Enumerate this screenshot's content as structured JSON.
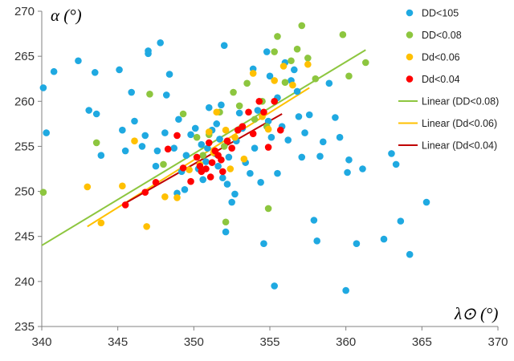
{
  "chart_data": {
    "type": "scatter",
    "xlabel": "λ⊙ (°)",
    "ylabel": "α (°)",
    "xlim": [
      340,
      370
    ],
    "ylim": [
      235,
      270
    ],
    "xticks": [
      340,
      345,
      350,
      355,
      360,
      365,
      370
    ],
    "yticks": [
      235,
      240,
      245,
      250,
      255,
      260,
      265,
      270
    ],
    "grid": false,
    "legend_position": "top-right",
    "series": [
      {
        "name": "DD<105",
        "color": "#1fa9e1",
        "x": [
          340.1,
          340.3,
          340.8,
          342.4,
          343.1,
          343.5,
          343.6,
          343.9,
          345.1,
          345.3,
          345.5,
          345.9,
          346.1,
          346.6,
          347.0,
          347.0,
          347.5,
          347.8,
          348.1,
          348.2,
          348.4,
          348.7,
          349.0,
          349.2,
          349.5,
          349.8,
          350.1,
          350.3,
          350.5,
          350.8,
          351.0,
          351.2,
          351.4,
          351.6,
          351.7,
          351.9,
          352.0,
          352.1,
          352.3,
          352.5,
          352.8,
          353.0,
          353.2,
          353.4,
          353.7,
          354.0,
          354.2,
          354.4,
          354.6,
          354.8,
          355.0,
          355.1,
          355.3,
          355.5,
          355.8,
          356.0,
          356.2,
          356.4,
          356.6,
          356.9,
          357.1,
          357.3,
          357.6,
          357.9,
          358.1,
          358.5,
          358.9,
          359.3,
          359.6,
          360.0,
          360.2,
          360.7,
          361.1,
          362.5,
          363.0,
          363.3,
          363.6,
          364.2,
          365.3,
          350.9,
          351.5,
          352.2,
          349.4,
          348.9,
          355.5,
          360.1,
          353.9,
          347.6,
          346.8,
          351.8,
          354.9,
          356.8,
          358.3,
          350.6,
          352.7
        ],
        "y": [
          261.5,
          256.5,
          263.3,
          264.5,
          259.0,
          263.2,
          258.6,
          254.0,
          263.5,
          256.8,
          254.5,
          261.0,
          257.8,
          255.0,
          265.3,
          265.6,
          252.8,
          266.5,
          256.5,
          260.7,
          263.0,
          254.8,
          258.0,
          252.2,
          254.0,
          256.3,
          257.0,
          252.5,
          255.2,
          253.3,
          259.3,
          256.8,
          254.2,
          252.8,
          255.8,
          251.5,
          266.2,
          245.5,
          253.8,
          248.8,
          255.6,
          258.7,
          257.0,
          253.2,
          252.0,
          254.8,
          259.0,
          251.0,
          244.2,
          265.5,
          262.8,
          256.0,
          239.5,
          252.0,
          257.2,
          264.3,
          255.7,
          262.3,
          263.5,
          258.3,
          253.8,
          256.5,
          258.5,
          246.8,
          244.5,
          255.5,
          262.0,
          258.2,
          256.0,
          239.0,
          253.5,
          244.2,
          252.5,
          244.7,
          254.2,
          253.0,
          246.7,
          243.0,
          248.8,
          254.8,
          257.5,
          250.8,
          250.2,
          249.8,
          260.4,
          252.1,
          263.6,
          254.5,
          256.2,
          259.6,
          257.8,
          261.1,
          253.9,
          251.3,
          249.7
        ]
      },
      {
        "name": "DD<0.08",
        "color": "#8dc63f",
        "x": [
          340.1,
          343.6,
          347.1,
          348.0,
          349.3,
          350.2,
          351.0,
          351.7,
          352.1,
          352.6,
          353.0,
          353.5,
          354.0,
          354.5,
          354.9,
          355.3,
          355.5,
          356.0,
          356.4,
          356.8,
          357.1,
          357.5,
          358.0,
          359.8,
          360.2,
          361.3,
          352.0,
          354.8,
          350.6
        ],
        "y": [
          249.9,
          255.4,
          260.8,
          253.0,
          258.6,
          256.0,
          256.3,
          258.8,
          246.6,
          261.0,
          259.5,
          262.0,
          258.0,
          260.0,
          248.1,
          265.5,
          267.2,
          262.1,
          264.5,
          265.8,
          268.4,
          264.8,
          262.5,
          267.4,
          262.8,
          264.3,
          255.0,
          257.2,
          254.0
        ]
      },
      {
        "name": "Dd<0.06",
        "color": "#ffc000",
        "x": [
          343.0,
          343.9,
          345.3,
          346.1,
          346.9,
          348.1,
          348.9,
          349.7,
          350.4,
          351.0,
          351.5,
          352.1,
          352.7,
          353.3,
          353.9,
          354.5,
          354.9,
          355.3,
          355.9,
          356.5,
          357.5,
          352.4,
          351.3
        ],
        "y": [
          250.5,
          246.5,
          250.6,
          255.6,
          246.1,
          249.4,
          249.3,
          252.4,
          253.0,
          256.6,
          258.8,
          256.8,
          256.0,
          253.6,
          263.1,
          258.3,
          256.9,
          262.3,
          263.9,
          261.8,
          264.1,
          252.5,
          254.3
        ]
      },
      {
        "name": "Dd<0.04",
        "color": "#ff0000",
        "x": [
          345.5,
          346.8,
          347.5,
          348.3,
          348.9,
          349.3,
          349.8,
          350.2,
          350.5,
          350.8,
          351.0,
          351.2,
          351.4,
          351.6,
          351.9,
          352.2,
          352.5,
          352.9,
          353.2,
          353.6,
          353.9,
          354.3,
          354.6,
          354.9,
          355.3,
          355.7,
          350.4,
          351.1,
          351.8
        ],
        "y": [
          248.5,
          249.9,
          251.0,
          254.7,
          256.2,
          252.6,
          251.1,
          253.8,
          252.2,
          252.5,
          255.4,
          253.2,
          254.5,
          254.0,
          252.2,
          255.6,
          254.8,
          256.8,
          257.2,
          258.8,
          256.4,
          260.0,
          258.8,
          254.9,
          260.0,
          256.8,
          252.8,
          251.6,
          253.5
        ]
      }
    ],
    "trendlines": [
      {
        "name": "Linear (DD<0.08)",
        "color": "#8dc63f",
        "x": [
          340.0,
          361.3
        ],
        "y": [
          244.0,
          265.7
        ]
      },
      {
        "name": "Linear (Dd<0.06)",
        "color": "#ffc000",
        "x": [
          343.0,
          357.6
        ],
        "y": [
          246.1,
          261.5
        ]
      },
      {
        "name": "Linear (Dd<0.04)",
        "color": "#c00000",
        "x": [
          345.4,
          355.8
        ],
        "y": [
          248.6,
          258.6
        ]
      }
    ]
  }
}
